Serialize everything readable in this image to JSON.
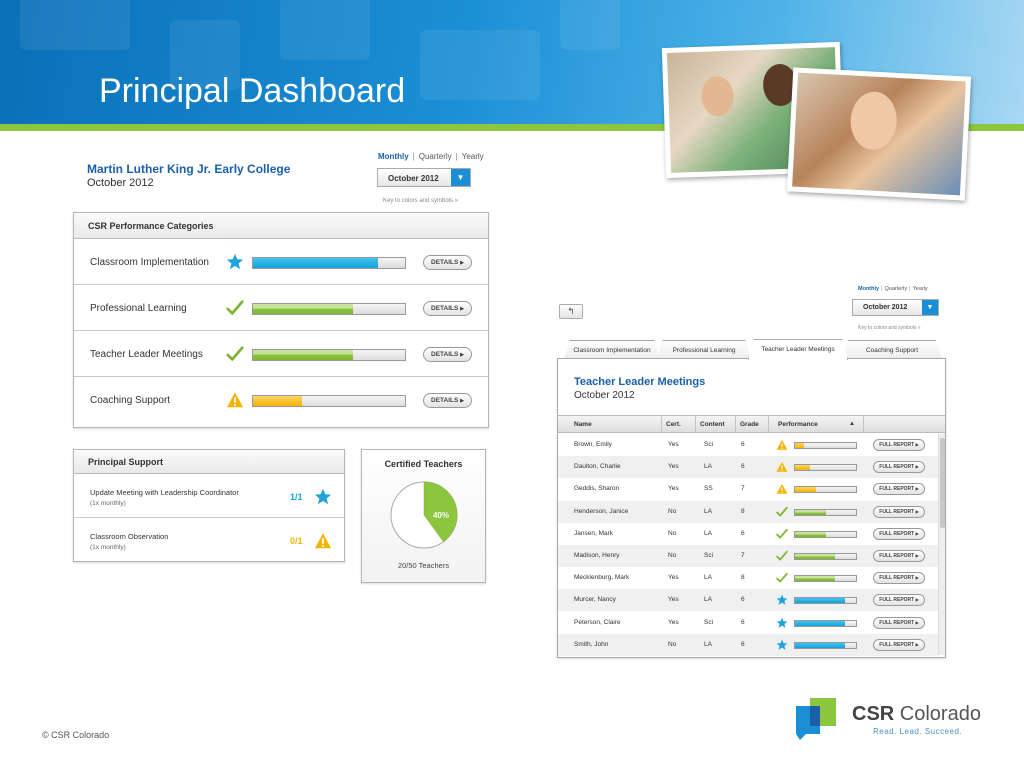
{
  "header": {
    "title": "Principal Dashboard"
  },
  "school": {
    "name": "Martin Luther King Jr. Early College",
    "period": "October 2012"
  },
  "period_filter": {
    "options": [
      "Monthly",
      "Quarterly",
      "Yearly"
    ],
    "selected": "October 2012",
    "key_link": "Key to colors and symbols »"
  },
  "performance": {
    "title": "CSR Performance Categories",
    "details_label": "DETAILS",
    "rows": [
      {
        "label": "Classroom Implementation",
        "icon": "star-icon",
        "color": "#11a3dc",
        "level": 0.82
      },
      {
        "label": "Professional Learning",
        "icon": "checkmark-icon",
        "color": "#7db532",
        "level": 0.66
      },
      {
        "label": "Teacher Leader Meetings",
        "icon": "checkmark-icon",
        "color": "#7db532",
        "level": 0.66
      },
      {
        "label": "Coaching Support",
        "icon": "warning-icon",
        "color": "#f4b400",
        "level": 0.32
      }
    ]
  },
  "principal_support": {
    "title": "Principal Support",
    "rows": [
      {
        "title": "Update Meeting with Leadership Coordinator",
        "freq": "(1x monthly)",
        "count": "1/1",
        "icon": "star-icon",
        "color": "#11a3dc"
      },
      {
        "title": "Classroom Observation",
        "freq": "(1x monthly)",
        "count": "0/1",
        "icon": "warning-icon",
        "color": "#f4b400"
      }
    ]
  },
  "certified_teachers": {
    "title": "Certified Teachers",
    "percent_label": "40%",
    "percent": 40,
    "summary": "20/50 Teachers"
  },
  "detail": {
    "back_label": "↰",
    "tabs": [
      "Classroom Implementation",
      "Professional Learning",
      "Teacher Leader Meetings",
      "Coaching Support"
    ],
    "active_tab": 2,
    "title": "Teacher Leader Meetings",
    "date": "October 2012",
    "columns": [
      "Name",
      "Cert.",
      "Content",
      "Grade",
      "Performance"
    ],
    "sort_indicator": "▲",
    "report_label": "FULL REPORT",
    "rows": [
      {
        "name": "Brown, Emily",
        "cert": "Yes",
        "content": "Sci",
        "grade": "6",
        "icon": "warning-icon",
        "level": 0.14
      },
      {
        "name": "Daulton, Charlie",
        "cert": "Yes",
        "content": "LA",
        "grade": "6",
        "icon": "warning-icon",
        "level": 0.25
      },
      {
        "name": "Geddis, Sharon",
        "cert": "Yes",
        "content": "SS",
        "grade": "7",
        "icon": "warning-icon",
        "level": 0.35
      },
      {
        "name": "Henderson, Janice",
        "cert": "No",
        "content": "LA",
        "grade": "8",
        "icon": "checkmark-icon",
        "level": 0.5
      },
      {
        "name": "Jansen, Mark",
        "cert": "No",
        "content": "LA",
        "grade": "6",
        "icon": "checkmark-icon",
        "level": 0.5
      },
      {
        "name": "Madison, Henry",
        "cert": "No",
        "content": "Sci",
        "grade": "7",
        "icon": "checkmark-icon",
        "level": 0.66
      },
      {
        "name": "Mecklenburg, Mark",
        "cert": "Yes",
        "content": "LA",
        "grade": "8",
        "icon": "checkmark-icon",
        "level": 0.66
      },
      {
        "name": "Murcer, Nancy",
        "cert": "Yes",
        "content": "LA",
        "grade": "6",
        "icon": "star-icon",
        "level": 0.82
      },
      {
        "name": "Peterson, Claire",
        "cert": "Yes",
        "content": "Sci",
        "grade": "6",
        "icon": "star-icon",
        "level": 0.82
      },
      {
        "name": "Smith, John",
        "cert": "No",
        "content": "LA",
        "grade": "6",
        "icon": "star-icon",
        "level": 0.82
      }
    ]
  },
  "footer": {
    "copyright": "© CSR Colorado",
    "logo_bold": "CSR",
    "logo_name": "Colorado",
    "tagline": "Read. Lead. Succeed."
  },
  "colors": {
    "blue": "#11a3dc",
    "green": "#7db532",
    "yellow": "#f4b400",
    "brand": "#1a5fa8"
  }
}
